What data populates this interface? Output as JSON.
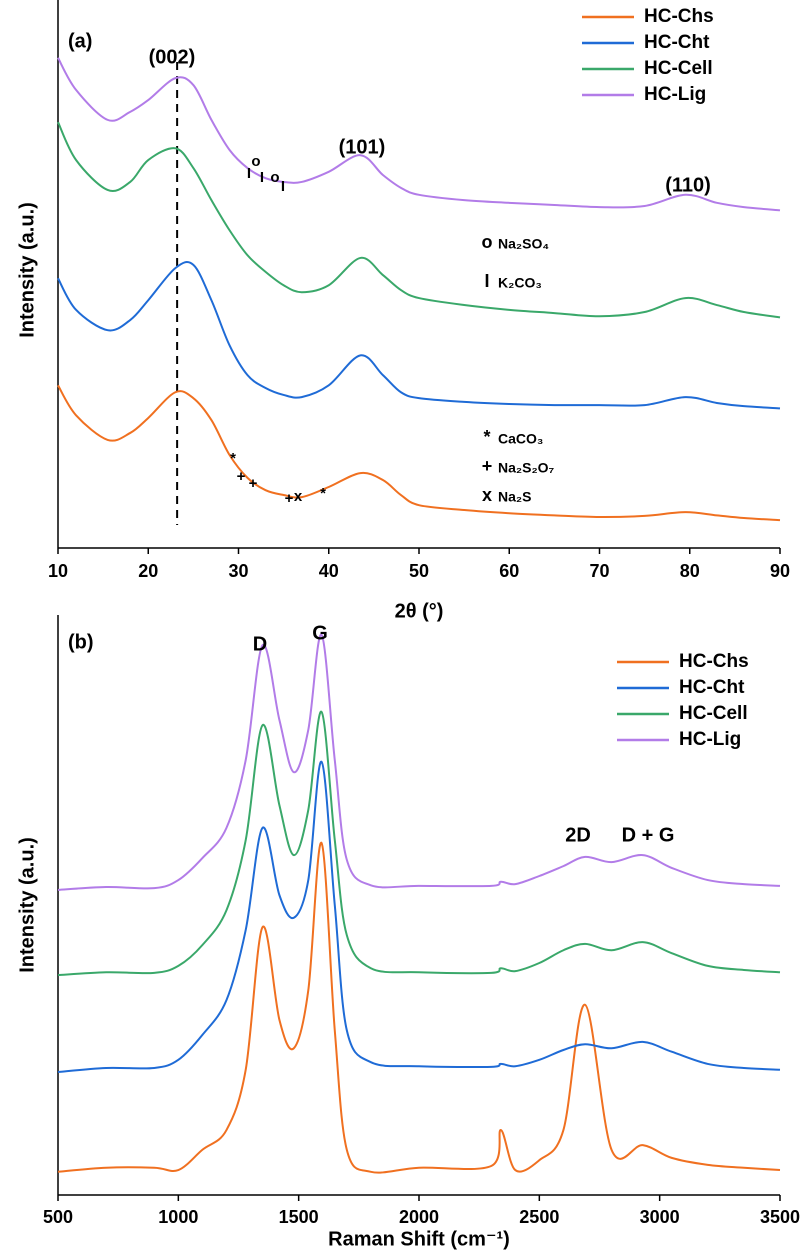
{
  "chart_data": [
    {
      "type": "line",
      "panel_label": "(a)",
      "x_label": "2θ (°)",
      "y_label": "Intensity (a.u.)",
      "xlim": [
        10,
        90
      ],
      "xticks": [
        10,
        20,
        30,
        40,
        50,
        60,
        70,
        80,
        90
      ],
      "ylim": [
        -2.4,
        100
      ],
      "x": [
        10,
        12,
        15.5,
        18,
        20,
        23,
        25,
        27,
        29,
        31,
        33,
        35,
        37,
        40,
        43.5,
        46,
        48,
        50,
        55,
        60,
        65,
        70,
        75,
        79.5,
        83,
        86,
        90
      ],
      "series": [
        {
          "name": "HC-Chs",
          "color": "#f07020",
          "values": [
            28.0,
            22.4,
            17.8,
            19.1,
            21.9,
            26.7,
            25.6,
            21.5,
            15.0,
            10.7,
            8.4,
            7.5,
            7.1,
            9.0,
            11.6,
            10.3,
            7.5,
            5.6,
            4.7,
            4.1,
            3.7,
            3.4,
            3.6,
            4.3,
            3.7,
            3.2,
            2.8
          ]
        },
        {
          "name": "HC-Cht",
          "color": "#1f6bd6",
          "values": [
            48.0,
            42.1,
            38.3,
            40.2,
            43.9,
            49.9,
            50.5,
            43.9,
            35.5,
            29.9,
            27.5,
            26.2,
            25.8,
            28.0,
            33.6,
            29.9,
            26.7,
            25.6,
            24.9,
            24.5,
            24.3,
            24.3,
            24.3,
            25.8,
            24.7,
            24.1,
            23.7
          ]
        },
        {
          "name": "HC-Cell",
          "color": "#3aa86a",
          "values": [
            77.2,
            70.1,
            64.5,
            66.0,
            70.1,
            72.3,
            68.6,
            62.6,
            57.0,
            52.3,
            49.2,
            46.7,
            45.4,
            46.7,
            51.8,
            48.6,
            45.8,
            44.3,
            43.0,
            42.1,
            41.5,
            40.9,
            41.7,
            44.3,
            43.0,
            41.7,
            40.7
          ]
        },
        {
          "name": "HC-Lig",
          "color": "#b27ce8",
          "values": [
            89.2,
            83.2,
            77.6,
            79.1,
            81.3,
            85.4,
            84.1,
            77.6,
            72.0,
            68.6,
            66.7,
            66.0,
            66.0,
            67.9,
            71.0,
            67.3,
            64.9,
            63.6,
            62.6,
            62.1,
            61.7,
            61.3,
            61.5,
            63.6,
            62.1,
            61.3,
            60.7
          ]
        }
      ],
      "reference_line_x": 23.2,
      "annotations": [
        "(002)",
        "(101)",
        "(110)"
      ],
      "phase_markers": [
        "I",
        "o",
        "I",
        "o",
        "I",
        "*",
        "+",
        "+",
        "+",
        "x",
        "*"
      ],
      "phase_legend": [
        {
          "symbol": "o",
          "label": "Na₂SO₄"
        },
        {
          "symbol": "I",
          "label": "K₂CO₃"
        },
        {
          "symbol": "*",
          "label": "CaCO₃"
        },
        {
          "symbol": "+",
          "label": "Na₂S₂O₇"
        },
        {
          "symbol": "x",
          "label": "Na₂S"
        }
      ]
    },
    {
      "type": "line",
      "panel_label": "(b)",
      "x_label": "Raman Shift (cm⁻¹)",
      "y_label": "Intensity (a.u.)",
      "xlim": [
        500,
        3500
      ],
      "xticks": [
        500,
        1000,
        1500,
        2000,
        2500,
        3000,
        3500
      ],
      "ylim": [
        0,
        100
      ],
      "x": [
        500,
        700,
        900,
        1000,
        1100,
        1200,
        1280,
        1350,
        1420,
        1480,
        1540,
        1595,
        1650,
        1700,
        1800,
        2000,
        2300,
        2340,
        2400,
        2500,
        2600,
        2690,
        2800,
        2930,
        3050,
        3200,
        3350,
        3500
      ],
      "series": [
        {
          "name": "HC-Chs",
          "color": "#f07020",
          "values": [
            4.0,
            4.7,
            4.7,
            4.3,
            7.8,
            11.2,
            21.6,
            46.2,
            30.2,
            25.3,
            35.3,
            60.7,
            28.4,
            7.8,
            4.0,
            4.7,
            5.0,
            11.2,
            4.3,
            6.0,
            11.2,
            32.8,
            7.8,
            8.6,
            6.4,
            5.2,
            4.7,
            4.3
          ]
        },
        {
          "name": "HC-Cht",
          "color": "#1f6bd6",
          "values": [
            21.2,
            21.9,
            21.9,
            23.3,
            27.6,
            33.6,
            45.7,
            63.3,
            51.7,
            47.8,
            54.3,
            74.7,
            50.0,
            28.4,
            22.9,
            22.2,
            22.1,
            22.6,
            22.2,
            23.3,
            25.0,
            26.0,
            25.3,
            26.4,
            24.7,
            22.6,
            21.9,
            21.6
          ]
        },
        {
          "name": "HC-Cell",
          "color": "#3aa86a",
          "values": [
            37.9,
            38.4,
            38.3,
            39.5,
            43.1,
            49.1,
            61.2,
            81.0,
            67.2,
            58.6,
            66.4,
            83.3,
            61.2,
            44.8,
            39.1,
            38.4,
            38.3,
            39.1,
            38.6,
            40.0,
            42.2,
            43.3,
            42.2,
            43.6,
            41.7,
            39.5,
            38.8,
            38.4
          ]
        },
        {
          "name": "HC-Lig",
          "color": "#b27ce8",
          "values": [
            52.6,
            53.1,
            52.9,
            54.3,
            58.1,
            63.3,
            75.0,
            94.8,
            81.9,
            72.9,
            80.2,
            96.6,
            75.0,
            57.8,
            53.4,
            53.3,
            53.3,
            54.0,
            53.6,
            55.0,
            56.7,
            58.3,
            57.4,
            58.6,
            56.4,
            54.3,
            53.6,
            53.3
          ]
        }
      ],
      "annotations": [
        "D",
        "G",
        "2D",
        "D + G"
      ]
    }
  ]
}
